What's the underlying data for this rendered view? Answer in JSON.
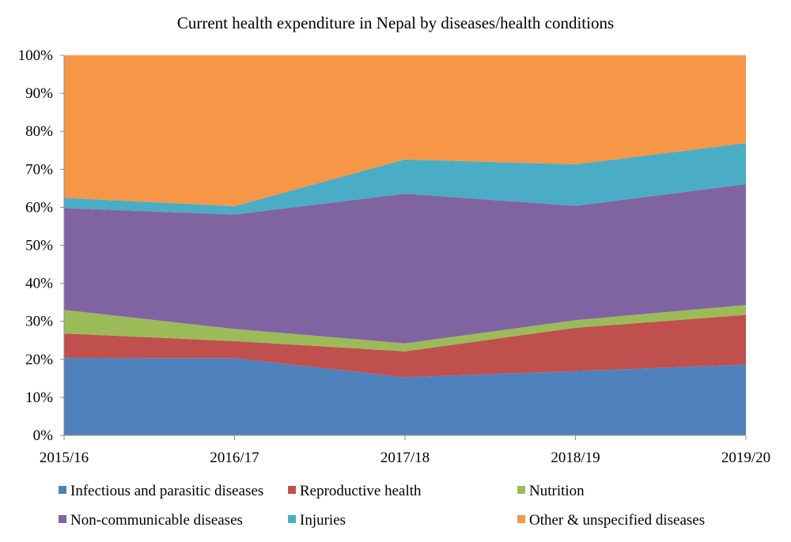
{
  "chart_data": {
    "type": "area",
    "stacked": true,
    "normalized": true,
    "title": "Current health expenditure in Nepal by diseases/health conditions",
    "categories": [
      "2015/16",
      "2016/17",
      "2017/18",
      "2018/19",
      "2019/20"
    ],
    "xlabel": "",
    "ylabel": "",
    "ylim": [
      0,
      100
    ],
    "yticks": [
      {
        "value": 0,
        "label": "0%"
      },
      {
        "value": 10,
        "label": "10%"
      },
      {
        "value": 20,
        "label": "20%"
      },
      {
        "value": 30,
        "label": "30%"
      },
      {
        "value": 40,
        "label": "40%"
      },
      {
        "value": 50,
        "label": "50%"
      },
      {
        "value": 60,
        "label": "60%"
      },
      {
        "value": 70,
        "label": "70%"
      },
      {
        "value": 80,
        "label": "80%"
      },
      {
        "value": 90,
        "label": "90%"
      },
      {
        "value": 100,
        "label": "100%"
      }
    ],
    "grid": false,
    "legend_position": "bottom",
    "series": [
      {
        "name": "Infectious and parasitic diseases",
        "color": "#4F81BD",
        "values": [
          20.4,
          20.3,
          15.3,
          16.9,
          18.6
        ]
      },
      {
        "name": "Reproductive health",
        "color": "#C0504D",
        "values": [
          6.4,
          4.5,
          6.8,
          11.4,
          13.1
        ]
      },
      {
        "name": "Nutrition",
        "color": "#9BBB59",
        "values": [
          6.2,
          3.2,
          2.1,
          2.0,
          2.6
        ]
      },
      {
        "name": "Non-communicable diseases",
        "color": "#8064A2",
        "values": [
          26.8,
          30.1,
          39.4,
          30.1,
          31.8
        ]
      },
      {
        "name": "Injuries",
        "color": "#4BACC6",
        "values": [
          2.7,
          2.2,
          9.0,
          10.9,
          10.8
        ]
      },
      {
        "name": "Other & unspecified diseases",
        "color": "#F79646",
        "values": [
          37.5,
          39.7,
          27.4,
          28.7,
          23.1
        ]
      }
    ]
  }
}
